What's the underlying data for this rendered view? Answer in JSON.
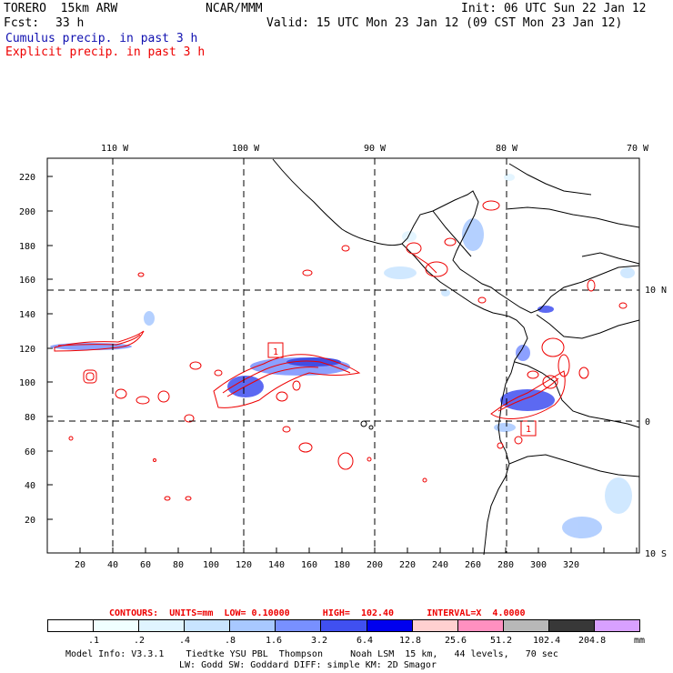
{
  "header": {
    "model": "TORERO  15km ARW",
    "org": "NCAR/MMM",
    "init": "Init: 06 UTC Sun 22 Jan 12",
    "fcst_label": "Fcst:",
    "fcst_value": "33 h",
    "valid": "Valid: 15 UTC Mon 23 Jan 12 (09 CST Mon 23 Jan 12)"
  },
  "legend_lines": {
    "cumulus": "Cumulus precip. in past 3 h",
    "explicit": "Explicit precip. in past 3 h",
    "cumulus_color": "#1010b0",
    "explicit_color": "#ee0000"
  },
  "map": {
    "lon_labels": [
      "110 W",
      "100 W",
      "90 W",
      "80 W",
      "70 W"
    ],
    "lat_labels": [
      "10 N",
      "0",
      "10 S"
    ],
    "x_ticks": [
      "20",
      "40",
      "60",
      "80",
      "100",
      "120",
      "140",
      "160",
      "180",
      "200",
      "220",
      "240",
      "260",
      "280",
      "300",
      "320"
    ],
    "y_ticks": [
      "20",
      "40",
      "60",
      "80",
      "100",
      "120",
      "140",
      "160",
      "180",
      "200",
      "220"
    ],
    "box_labels": [
      "1",
      "1"
    ]
  },
  "contour_info": "CONTOURS:  UNITS=mm  LOW= 0.10000      HIGH=  102.40      INTERVAL=X  4.0000",
  "colorbar": {
    "values": [
      ".1",
      ".2",
      ".4",
      ".8",
      "1.6",
      "3.2",
      "6.4",
      "12.8",
      "25.6",
      "51.2",
      "102.4",
      "204.8"
    ],
    "unit": "mm",
    "colors": [
      "#ffffff",
      "#f0ffff",
      "#e0f4ff",
      "#c8e4ff",
      "#a8c8ff",
      "#7890ff",
      "#4050f0",
      "#0000ee",
      "#ffd0d0",
      "#ff90c0",
      "#b8b8b8",
      "#383838",
      "#d8a0ff"
    ]
  },
  "footer": {
    "line1": "Model Info: V3.3.1    Tiedtke YSU PBL  Thompson     Noah LSM  15 km,   44 levels,   70 sec",
    "line2": "LW: Godd SW: Goddard DIFF: simple KM: 2D Smagor"
  }
}
